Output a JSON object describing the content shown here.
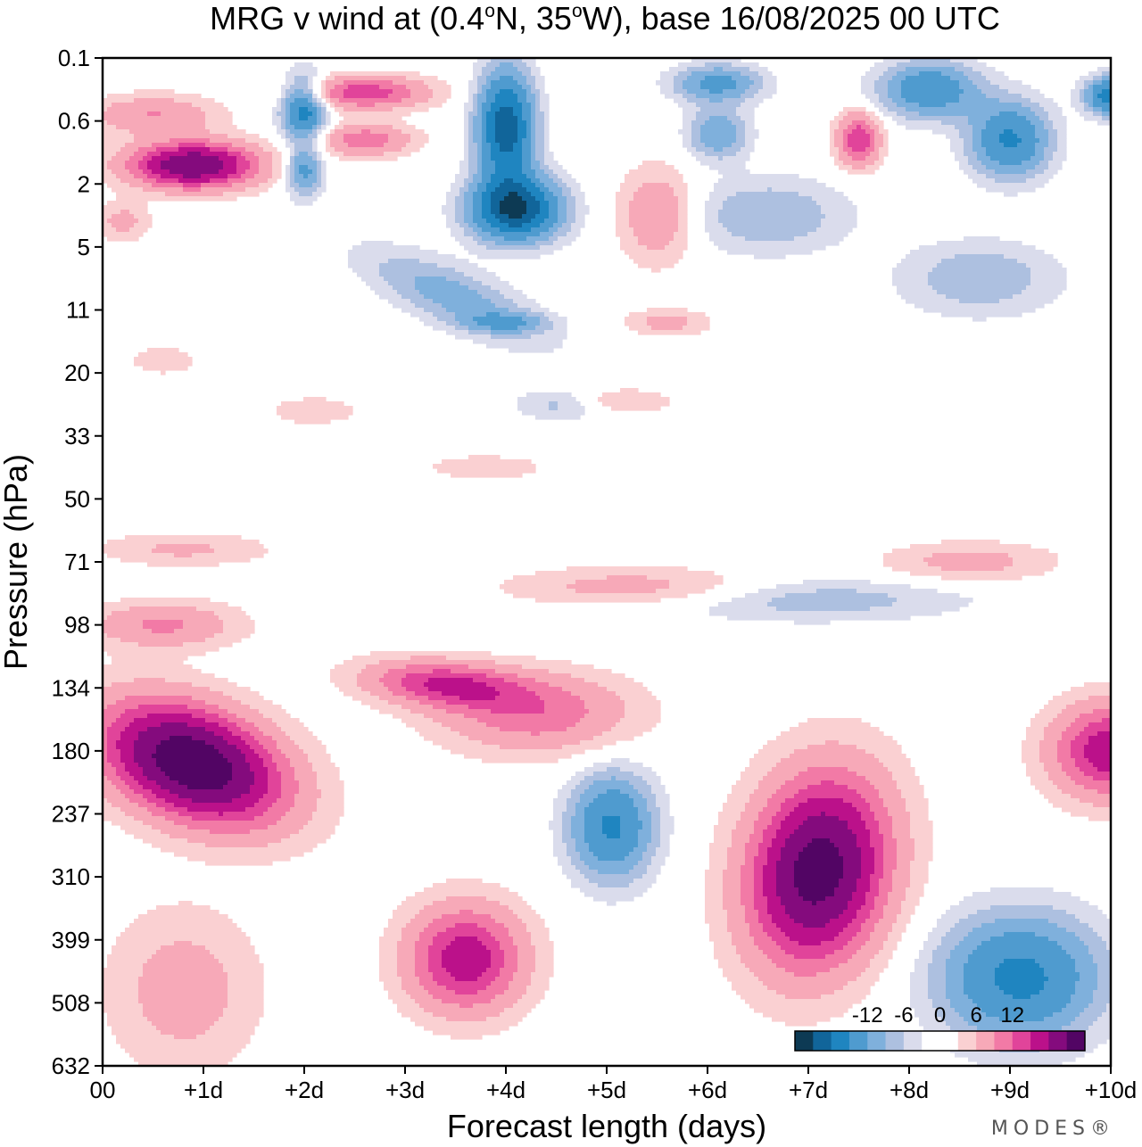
{
  "chart_data": {
    "type": "heatmap",
    "title": "MRG v wind at (0.4°N, 35°W),  base 16/08/2025  00 UTC",
    "title_parts": {
      "prefix": "MRG v wind at (0.4",
      "deg1": "o",
      "mid": "N, 35",
      "deg2": "o",
      "suffix": "W),  base 16/08/2025  00 UTC"
    },
    "xlabel": "Forecast length (days)",
    "ylabel": "Pressure (hPa)",
    "x_ticks": [
      0,
      1,
      2,
      3,
      4,
      5,
      6,
      7,
      8,
      9,
      10
    ],
    "x_tick_labels": [
      "00",
      "+1d",
      "+2d",
      "+3d",
      "+4d",
      "+5d",
      "+6d",
      "+7d",
      "+8d",
      "+9d",
      "+10d"
    ],
    "xlim": [
      0,
      10
    ],
    "y_tick_labels": [
      "0.1",
      "0.6",
      "2",
      "5",
      "11",
      "20",
      "33",
      "50",
      "71",
      "98",
      "134",
      "180",
      "237",
      "310",
      "399",
      "508",
      "632"
    ],
    "ylim": [
      "0.1",
      "632"
    ],
    "colorbar": {
      "levels": [
        -15,
        -12,
        -9,
        -6,
        -3,
        0,
        3,
        6,
        9,
        12,
        15
      ],
      "labels": [
        "-12",
        "-6",
        "0",
        "6",
        "12"
      ],
      "label_values": [
        -12,
        -6,
        0,
        6,
        12
      ],
      "colors": [
        "#0d3a54",
        "#11659a",
        "#1f85c0",
        "#4f9bcf",
        "#7fb0dc",
        "#adc0e0",
        "#dadcec",
        "#ffffff",
        "#ffffff",
        "#fad0d2",
        "#f7a9b8",
        "#f27aa6",
        "#e1449a",
        "#bb118a",
        "#840b7d",
        "#520564"
      ]
    },
    "contour_levels": [
      -15,
      -12,
      -9,
      -6,
      -3,
      -1.5,
      1.5,
      3,
      6,
      9,
      12,
      15
    ],
    "features": [
      {
        "day": 0.9,
        "level": 11.2,
        "amplitude": 26,
        "width_days": 0.85,
        "depth_levels": 0.85,
        "tilt": 0.38
      },
      {
        "day": 3.6,
        "level": 14.3,
        "amplitude": 14.5,
        "width_days": 0.55,
        "depth_levels": 0.8,
        "tilt": 0
      },
      {
        "day": 7.1,
        "level": 12.9,
        "amplitude": 24,
        "width_days": 0.65,
        "depth_levels": 1.4,
        "tilt": -0.32
      },
      {
        "day": 5.05,
        "level": 12.2,
        "amplitude": -9.5,
        "width_days": 0.42,
        "depth_levels": 0.85,
        "tilt": 0
      },
      {
        "day": 3.4,
        "level": 9.95,
        "amplitude": 12,
        "width_days": 0.75,
        "depth_levels": 0.35,
        "tilt": 0.12
      },
      {
        "day": 4.3,
        "level": 10.4,
        "amplitude": 8,
        "width_days": 0.9,
        "depth_levels": 0.6,
        "tilt": 0
      },
      {
        "day": 10.0,
        "level": 11.0,
        "amplitude": 15,
        "width_days": 0.55,
        "depth_levels": 0.7,
        "tilt": 0
      },
      {
        "day": 9.1,
        "level": 14.6,
        "amplitude": -10,
        "width_days": 0.8,
        "depth_levels": 1.0,
        "tilt": 0
      },
      {
        "day": 0.6,
        "level": 9.0,
        "amplitude": 6.5,
        "width_days": 0.7,
        "depth_levels": 0.35,
        "tilt": 0
      },
      {
        "day": 0.8,
        "level": 14.8,
        "amplitude": 4.5,
        "width_days": 0.7,
        "depth_levels": 1.2,
        "tilt": 0
      },
      {
        "day": 5.3,
        "level": 8.4,
        "amplitude": 4.5,
        "width_days": 1.2,
        "depth_levels": 0.3,
        "tilt": 0
      },
      {
        "day": 8.6,
        "level": 8.0,
        "amplitude": 4.2,
        "width_days": 0.8,
        "depth_levels": 0.3,
        "tilt": 0
      },
      {
        "day": 0.8,
        "level": 7.8,
        "amplitude": 3.5,
        "width_days": 0.8,
        "depth_levels": 0.25,
        "tilt": 0
      },
      {
        "day": 7.0,
        "level": 8.6,
        "amplitude": -3.5,
        "width_days": 1.6,
        "depth_levels": 0.35,
        "tilt": 0
      },
      {
        "day": 0.9,
        "level": 1.7,
        "amplitude": 21,
        "width_days": 0.6,
        "depth_levels": 0.35,
        "tilt": 0
      },
      {
        "day": 0.5,
        "level": 0.9,
        "amplitude": 6,
        "width_days": 0.6,
        "depth_levels": 0.3,
        "tilt": 0
      },
      {
        "day": 2.6,
        "level": 0.55,
        "amplitude": 11,
        "width_days": 0.6,
        "depth_levels": 0.25,
        "tilt": 0
      },
      {
        "day": 2.6,
        "level": 1.3,
        "amplitude": 8,
        "width_days": 0.45,
        "depth_levels": 0.25,
        "tilt": 0
      },
      {
        "day": 2.0,
        "level": 0.8,
        "amplitude": -11,
        "width_days": 0.22,
        "depth_levels": 0.5,
        "tilt": 0
      },
      {
        "day": 2.0,
        "level": 1.8,
        "amplitude": -7,
        "width_days": 0.18,
        "depth_levels": 0.4,
        "tilt": 0
      },
      {
        "day": 4.0,
        "level": 1.1,
        "amplitude": -14,
        "width_days": 0.28,
        "depth_levels": 0.9,
        "tilt": 0
      },
      {
        "day": 4.1,
        "level": 2.4,
        "amplitude": -15,
        "width_days": 0.45,
        "depth_levels": 0.5,
        "tilt": 0
      },
      {
        "day": 3.5,
        "level": 3.8,
        "amplitude": -5,
        "width_days": 0.9,
        "depth_levels": 0.5,
        "tilt": 0.6
      },
      {
        "day": 5.5,
        "level": 2.5,
        "amplitude": 6,
        "width_days": 0.35,
        "depth_levels": 0.7,
        "tilt": 0
      },
      {
        "day": 6.1,
        "level": 0.4,
        "amplitude": -7,
        "width_days": 0.45,
        "depth_levels": 0.3,
        "tilt": 0
      },
      {
        "day": 6.1,
        "level": 1.2,
        "amplitude": -6,
        "width_days": 0.3,
        "depth_levels": 0.4,
        "tilt": 0
      },
      {
        "day": 7.5,
        "level": 1.3,
        "amplitude": 12,
        "width_days": 0.2,
        "depth_levels": 0.4,
        "tilt": 0
      },
      {
        "day": 8.2,
        "level": 0.5,
        "amplitude": -8.5,
        "width_days": 0.5,
        "depth_levels": 0.45,
        "tilt": 0
      },
      {
        "day": 9.0,
        "level": 1.3,
        "amplitude": -9.5,
        "width_days": 0.4,
        "depth_levels": 0.6,
        "tilt": 0
      },
      {
        "day": 10.0,
        "level": 0.6,
        "amplitude": -11,
        "width_days": 0.25,
        "depth_levels": 0.3,
        "tilt": 0
      },
      {
        "day": 6.6,
        "level": 2.5,
        "amplitude": -4,
        "width_days": 0.8,
        "depth_levels": 0.6,
        "tilt": 0
      },
      {
        "day": 8.7,
        "level": 3.5,
        "amplitude": -3.8,
        "width_days": 0.8,
        "depth_levels": 0.6,
        "tilt": 0
      },
      {
        "day": 0.2,
        "level": 2.6,
        "amplitude": 4,
        "width_days": 0.25,
        "depth_levels": 0.3,
        "tilt": 0
      },
      {
        "day": 4.0,
        "level": 4.2,
        "amplitude": -4.5,
        "width_days": 0.4,
        "depth_levels": 0.15,
        "tilt": 0
      },
      {
        "day": 5.6,
        "level": 4.2,
        "amplitude": 4,
        "width_days": 0.4,
        "depth_levels": 0.2,
        "tilt": 0
      },
      {
        "day": 4.6,
        "level": 5.5,
        "amplitude": -3.5,
        "width_days": 0.5,
        "depth_levels": 0.25,
        "tilt": 0
      },
      {
        "day": 5.1,
        "level": 5.45,
        "amplitude": 3.8,
        "width_days": 0.5,
        "depth_levels": 0.2,
        "tilt": 0
      },
      {
        "day": 2.1,
        "level": 5.6,
        "amplitude": 3,
        "width_days": 0.4,
        "depth_levels": 0.2,
        "tilt": 0
      },
      {
        "day": 0.6,
        "level": 4.8,
        "amplitude": 3,
        "width_days": 0.3,
        "depth_levels": 0.2,
        "tilt": 0
      },
      {
        "day": 3.8,
        "level": 6.5,
        "amplitude": 2.5,
        "width_days": 0.6,
        "depth_levels": 0.2,
        "tilt": 0
      }
    ]
  },
  "brand": "MODES®"
}
